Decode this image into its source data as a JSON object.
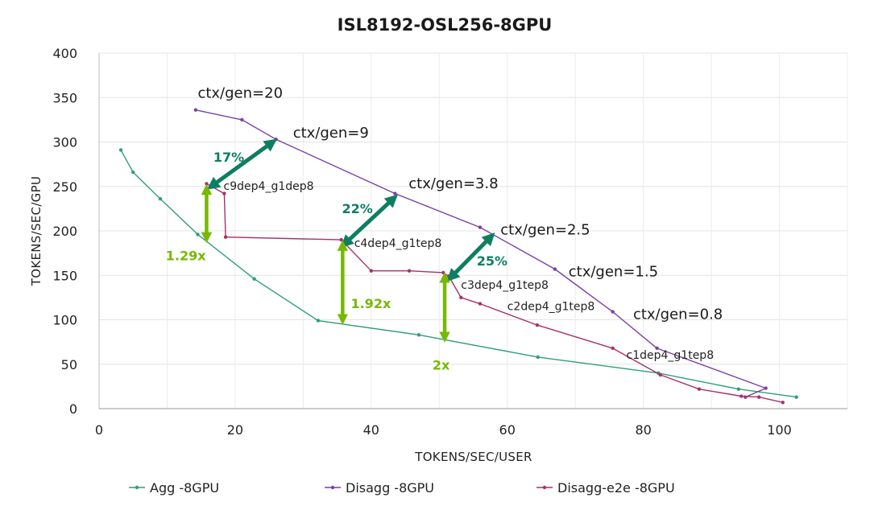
{
  "chart_data": {
    "type": "line",
    "title": "ISL8192-OSL256-8GPU",
    "xlabel": "TOKENS/SEC/USER",
    "ylabel": "TOKENS/SEC/GPU",
    "xlim": [
      0,
      110
    ],
    "ylim": [
      0,
      400
    ],
    "xticks": [
      0,
      20,
      40,
      60,
      80,
      100
    ],
    "yticks": [
      0,
      50,
      100,
      150,
      200,
      250,
      300,
      350,
      400
    ],
    "grid": true,
    "legend_position": "bottom",
    "series": [
      {
        "name": "Agg -8GPU",
        "color": "#2e9e7a",
        "points": [
          [
            3.2,
            291
          ],
          [
            5,
            266
          ],
          [
            9,
            236
          ],
          [
            14.5,
            196
          ],
          [
            22.8,
            146
          ],
          [
            32.2,
            99
          ],
          [
            47,
            83
          ],
          [
            64.5,
            58
          ],
          [
            82.2,
            40
          ],
          [
            94,
            22
          ],
          [
            102.5,
            13
          ]
        ]
      },
      {
        "name": "Disagg -8GPU",
        "color": "#7b3fa6",
        "points": [
          [
            14.2,
            336
          ],
          [
            21,
            325
          ],
          [
            26,
            303
          ],
          [
            43.5,
            242
          ],
          [
            56,
            204
          ],
          [
            67,
            157
          ],
          [
            75.5,
            109
          ],
          [
            82,
            68
          ],
          [
            98,
            23
          ],
          [
            95,
            13
          ]
        ]
      },
      {
        "name": "Disagg-e2e -8GPU",
        "color": "#a8306a",
        "points": [
          [
            15.8,
            253
          ],
          [
            18.4,
            242
          ],
          [
            18.6,
            193
          ],
          [
            35.6,
            190
          ],
          [
            40,
            155
          ],
          [
            45.6,
            155
          ],
          [
            50.6,
            153
          ],
          [
            51.4,
            149
          ],
          [
            53.2,
            125
          ],
          [
            56,
            118
          ],
          [
            64.4,
            94
          ],
          [
            75.5,
            68
          ],
          [
            82.5,
            38
          ],
          [
            88.2,
            22
          ],
          [
            94.4,
            14
          ],
          [
            97,
            13
          ],
          [
            100.5,
            7
          ]
        ]
      }
    ],
    "annotations": {
      "ratios": [
        {
          "text": "ctx/gen=20",
          "x": 14.5,
          "y": 350
        },
        {
          "text": "ctx/gen=9",
          "x": 28.5,
          "y": 305
        },
        {
          "text": "ctx/gen=3.8",
          "x": 45.5,
          "y": 248
        },
        {
          "text": "ctx/gen=2.5",
          "x": 59,
          "y": 196
        },
        {
          "text": "ctx/gen=1.5",
          "x": 69,
          "y": 149
        },
        {
          "text": "ctx/gen=0.8",
          "x": 78.5,
          "y": 101
        }
      ],
      "configs": [
        {
          "text": "c9dep4_g1dep8",
          "x": 18.3,
          "y": 246
        },
        {
          "text": "c4dep4_g1tep8",
          "x": 37.5,
          "y": 182
        },
        {
          "text": "c3dep4_g1tep8",
          "x": 53.2,
          "y": 135
        },
        {
          "text": "c2dep4_g1tep8",
          "x": 60,
          "y": 111
        },
        {
          "text": "c1dep4_g1tep8",
          "x": 77.5,
          "y": 56
        }
      ],
      "gains": [
        {
          "text": "17%",
          "x1": 16.3,
          "y1": 249,
          "x2": 25.7,
          "y2": 301,
          "lx": 16.8,
          "ly": 278
        },
        {
          "text": "22%",
          "x1": 35.9,
          "y1": 184,
          "x2": 43.5,
          "y2": 238,
          "lx": 35.7,
          "ly": 220
        },
        {
          "text": "25%",
          "x1": 51.5,
          "y1": 146,
          "x2": 57.8,
          "y2": 195,
          "lx": 55.5,
          "ly": 161
        }
      ],
      "multipliers": [
        {
          "text": "1.29x",
          "x": 15.8,
          "y_top": 249,
          "y_bottom": 190,
          "lx": 9.8,
          "ly": 167
        },
        {
          "text": "1.92x",
          "x": 35.8,
          "y_top": 186,
          "y_bottom": 98,
          "lx": 37,
          "ly": 113
        },
        {
          "text": "2x",
          "x": 50.8,
          "y_top": 150,
          "y_bottom": 78,
          "lx": 49,
          "ly": 44
        }
      ]
    }
  }
}
